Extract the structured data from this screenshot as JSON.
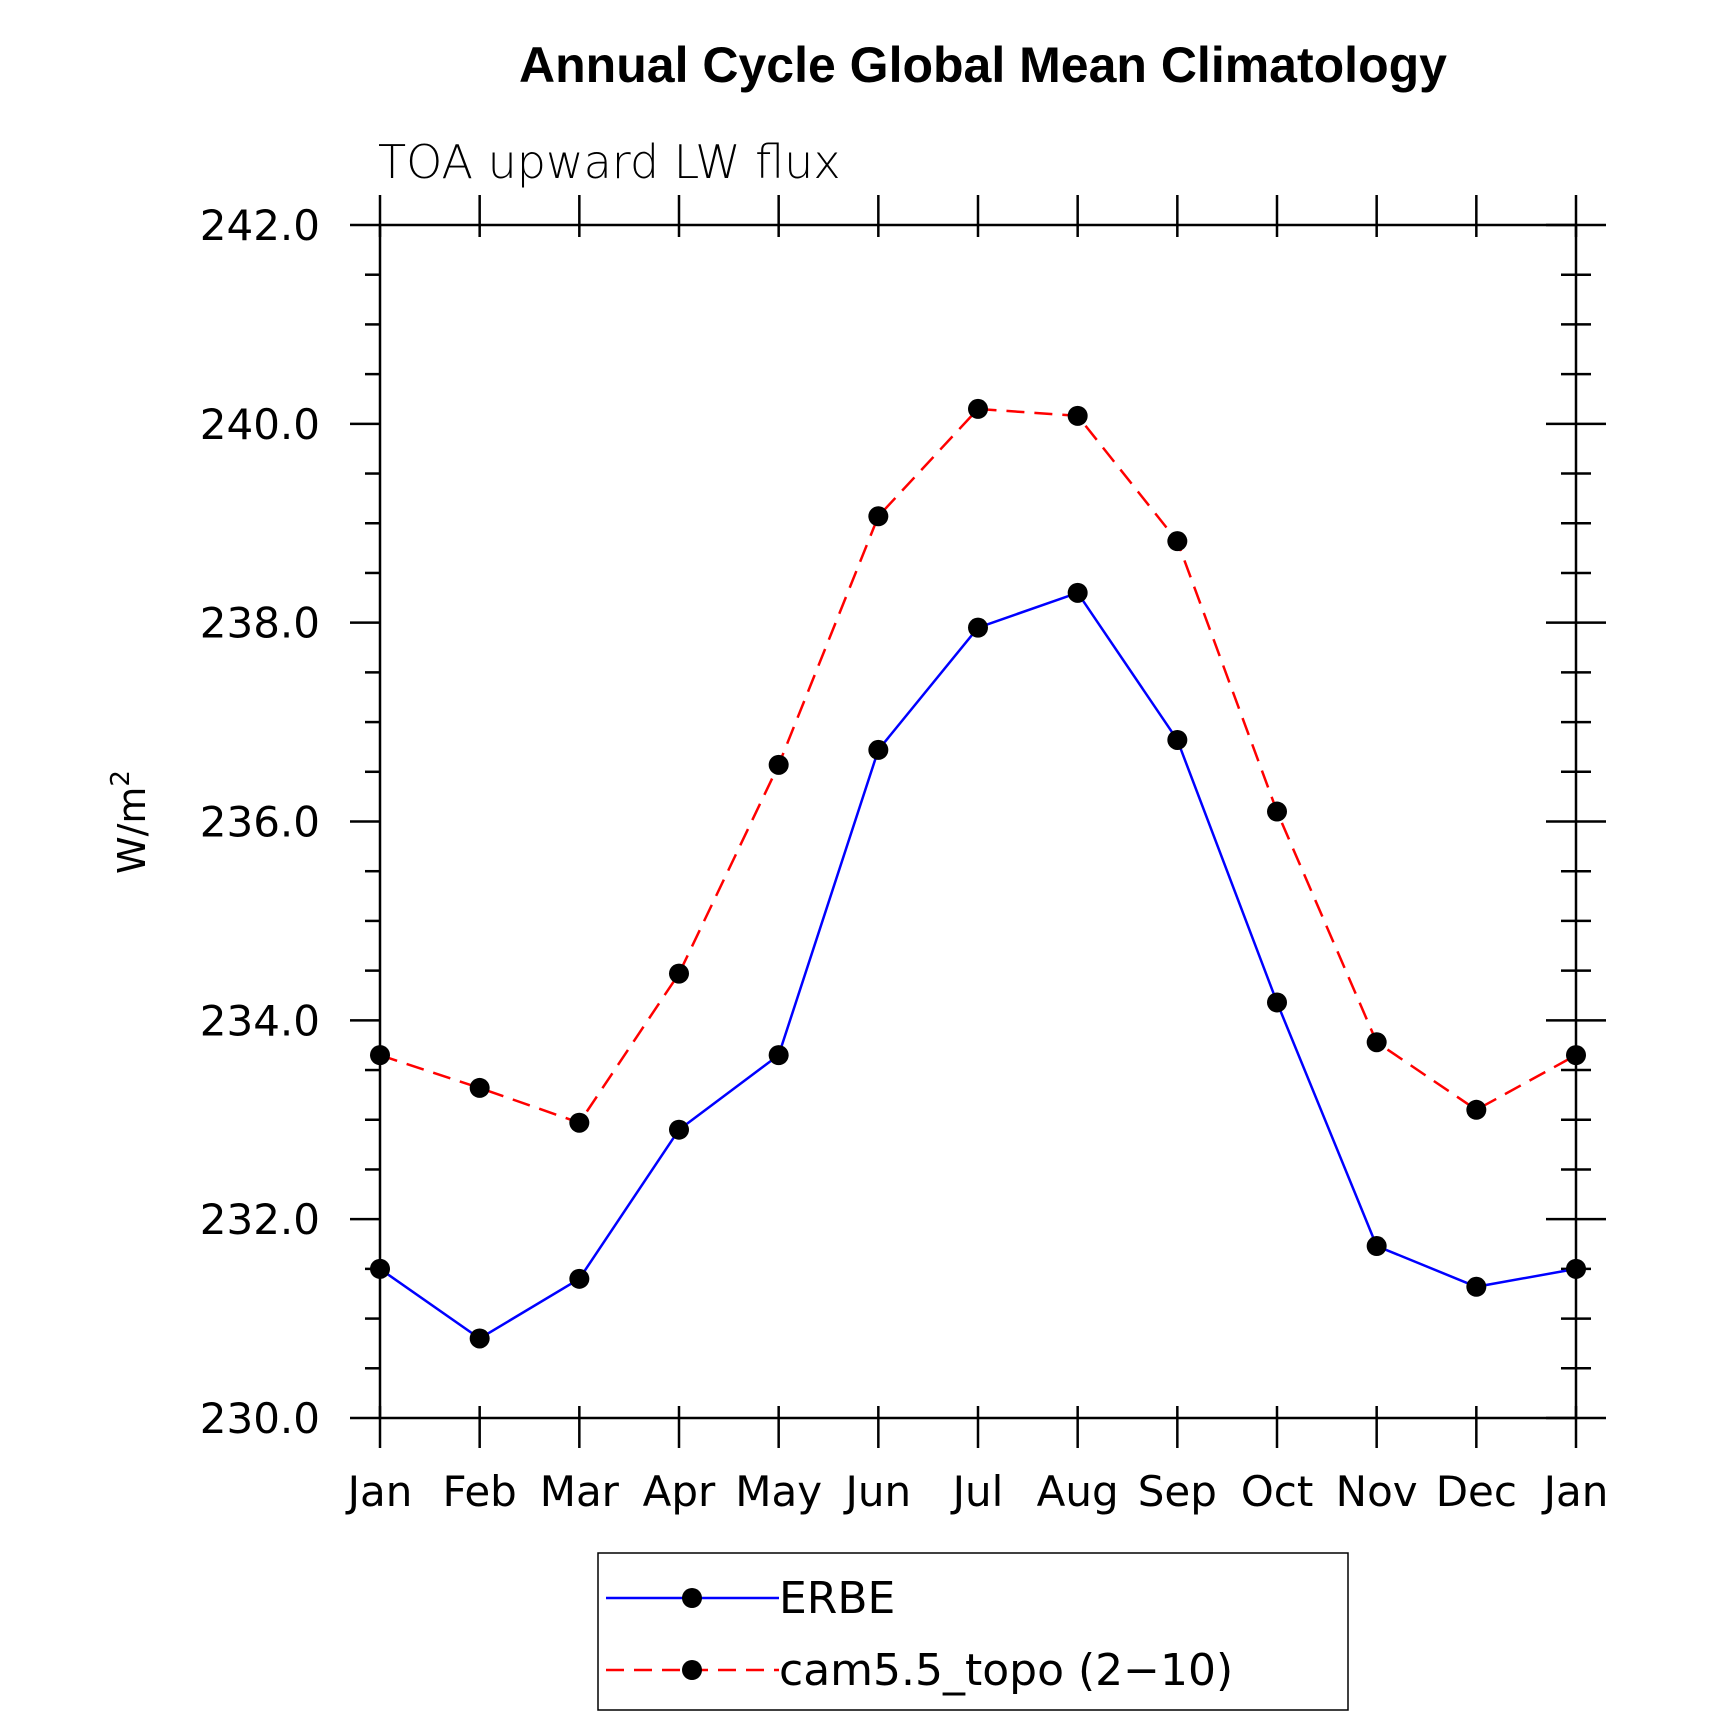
{
  "chart_data": {
    "type": "line",
    "title": "Annual Cycle Global Mean Climatology",
    "subtitle": "TOA upward LW flux",
    "ylabel": "W/m",
    "ylabel_sup": "2",
    "categories": [
      "Jan",
      "Feb",
      "Mar",
      "Apr",
      "May",
      "Jun",
      "Jul",
      "Aug",
      "Sep",
      "Oct",
      "Nov",
      "Dec",
      "Jan"
    ],
    "ylim": [
      230.0,
      242.0
    ],
    "yticks": [
      "230.0",
      "232.0",
      "234.0",
      "236.0",
      "238.0",
      "240.0",
      "242.0"
    ],
    "grid": false,
    "legend_position": "bottom-center",
    "series": [
      {
        "name": "ERBE",
        "color": "#0000ff",
        "dash": "solid",
        "marker": "filled-circle",
        "values": [
          231.5,
          230.8,
          231.4,
          232.9,
          233.65,
          236.72,
          237.95,
          238.3,
          236.82,
          234.18,
          231.73,
          231.32,
          231.5
        ]
      },
      {
        "name": "cam5.5_topo (2−10)",
        "color": "#ff0000",
        "dash": "dashed",
        "marker": "filled-circle",
        "values": [
          233.65,
          233.32,
          232.97,
          234.47,
          236.57,
          239.07,
          240.15,
          240.08,
          238.82,
          236.1,
          233.78,
          233.1,
          233.65
        ]
      }
    ]
  }
}
